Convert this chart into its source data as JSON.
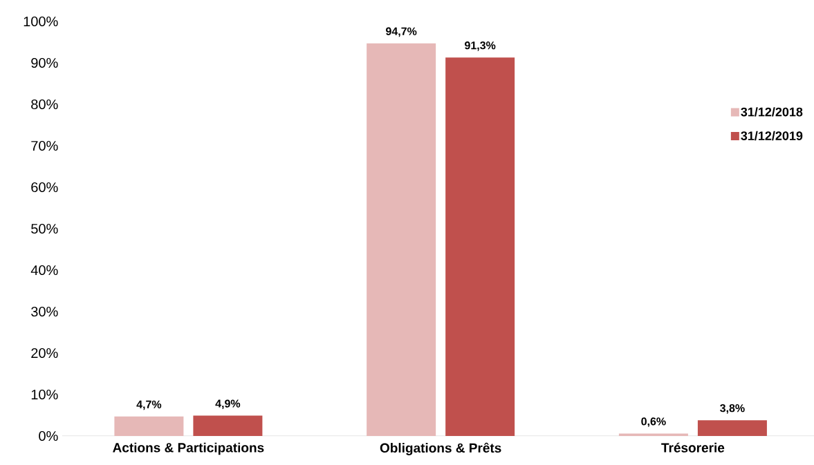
{
  "chart_data": {
    "type": "bar",
    "categories": [
      "Actions & Participations",
      "Obligations & Prêts",
      "Trésorerie"
    ],
    "series": [
      {
        "name": "31/12/2018",
        "color": "#e6b8b7",
        "values": [
          4.7,
          94.7,
          0.6
        ],
        "value_labels": [
          "4,7%",
          "94,7%",
          "0,6%"
        ]
      },
      {
        "name": "31/12/2019",
        "color": "#c0504d",
        "values": [
          4.9,
          91.3,
          3.8
        ],
        "value_labels": [
          "4,9%",
          "91,3%",
          "3,8%"
        ]
      }
    ],
    "ylim": [
      0,
      100
    ],
    "yticks": [
      {
        "value": 0,
        "label": "0%"
      },
      {
        "value": 10,
        "label": "10%"
      },
      {
        "value": 20,
        "label": "20%"
      },
      {
        "value": 30,
        "label": "30%"
      },
      {
        "value": 40,
        "label": "40%"
      },
      {
        "value": 50,
        "label": "50%"
      },
      {
        "value": 60,
        "label": "60%"
      },
      {
        "value": 70,
        "label": "70%"
      },
      {
        "value": 80,
        "label": "80%"
      },
      {
        "value": 90,
        "label": "90%"
      },
      {
        "value": 100,
        "label": "100%"
      }
    ],
    "grid": false,
    "legend": "right"
  }
}
